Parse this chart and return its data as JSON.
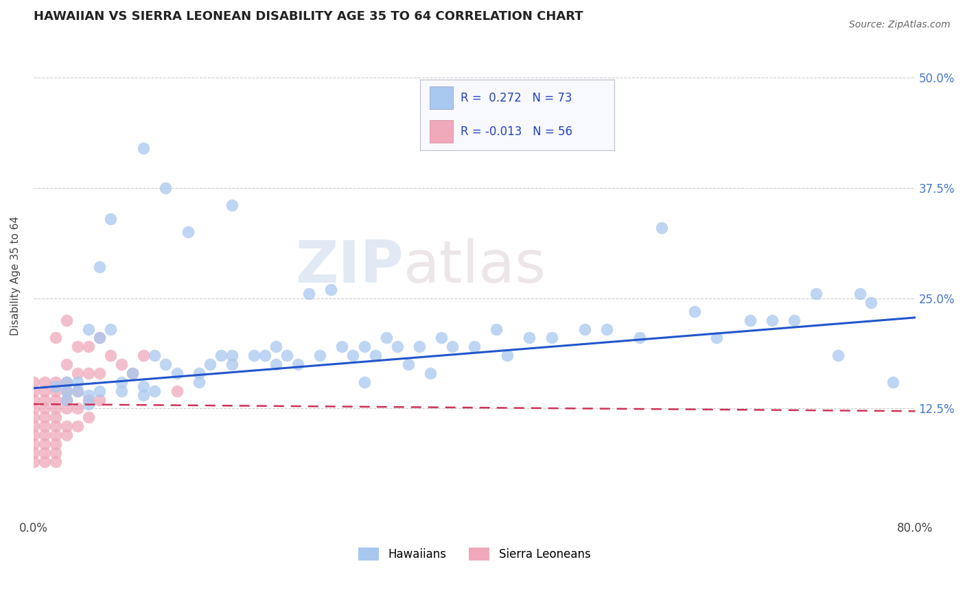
{
  "title": "HAWAIIAN VS SIERRA LEONEAN DISABILITY AGE 35 TO 64 CORRELATION CHART",
  "source_text": "Source: ZipAtlas.com",
  "ylabel": "Disability Age 35 to 64",
  "xlim": [
    0.0,
    0.8
  ],
  "ylim": [
    0.0,
    0.55
  ],
  "xtick_values": [
    0.0,
    0.1,
    0.2,
    0.3,
    0.4,
    0.5,
    0.6,
    0.7,
    0.8
  ],
  "ytick_values": [
    0.0,
    0.125,
    0.25,
    0.375,
    0.5
  ],
  "r_hawaiian": 0.272,
  "n_hawaiian": 73,
  "r_sierraleonean": -0.013,
  "n_sierraleonean": 56,
  "hawaiian_color": "#a8c8f0",
  "sierraleonean_color": "#f0a8bb",
  "trend_hawaiian_color": "#2255cc",
  "trend_sierraleonean_color": "#cc3355",
  "background_color": "#ffffff",
  "legend_label_hawaiian": "Hawaiians",
  "legend_label_sierraleonean": "Sierra Leoneans",
  "hawaiian_x": [
    0.02,
    0.03,
    0.03,
    0.03,
    0.04,
    0.04,
    0.05,
    0.05,
    0.05,
    0.06,
    0.06,
    0.06,
    0.07,
    0.07,
    0.08,
    0.08,
    0.09,
    0.1,
    0.1,
    0.11,
    0.11,
    0.12,
    0.12,
    0.13,
    0.14,
    0.15,
    0.15,
    0.16,
    0.17,
    0.18,
    0.18,
    0.2,
    0.21,
    0.22,
    0.22,
    0.23,
    0.24,
    0.25,
    0.26,
    0.28,
    0.29,
    0.3,
    0.3,
    0.31,
    0.32,
    0.33,
    0.34,
    0.35,
    0.36,
    0.37,
    0.38,
    0.4,
    0.42,
    0.43,
    0.45,
    0.47,
    0.5,
    0.52,
    0.55,
    0.57,
    0.6,
    0.62,
    0.65,
    0.67,
    0.69,
    0.71,
    0.73,
    0.75,
    0.76,
    0.78,
    0.1,
    0.18,
    0.27
  ],
  "hawaiian_y": [
    0.15,
    0.155,
    0.145,
    0.135,
    0.145,
    0.155,
    0.215,
    0.14,
    0.13,
    0.285,
    0.205,
    0.145,
    0.34,
    0.215,
    0.155,
    0.145,
    0.165,
    0.15,
    0.14,
    0.185,
    0.145,
    0.375,
    0.175,
    0.165,
    0.325,
    0.165,
    0.155,
    0.175,
    0.185,
    0.185,
    0.175,
    0.185,
    0.185,
    0.195,
    0.175,
    0.185,
    0.175,
    0.255,
    0.185,
    0.195,
    0.185,
    0.155,
    0.195,
    0.185,
    0.205,
    0.195,
    0.175,
    0.195,
    0.165,
    0.205,
    0.195,
    0.195,
    0.215,
    0.185,
    0.205,
    0.205,
    0.215,
    0.215,
    0.205,
    0.33,
    0.235,
    0.205,
    0.225,
    0.225,
    0.225,
    0.255,
    0.185,
    0.255,
    0.245,
    0.155,
    0.42,
    0.355,
    0.26
  ],
  "sierraleonean_x": [
    0.0,
    0.0,
    0.0,
    0.0,
    0.0,
    0.0,
    0.0,
    0.0,
    0.0,
    0.0,
    0.01,
    0.01,
    0.01,
    0.01,
    0.01,
    0.01,
    0.01,
    0.01,
    0.01,
    0.01,
    0.02,
    0.02,
    0.02,
    0.02,
    0.02,
    0.02,
    0.02,
    0.02,
    0.02,
    0.02,
    0.03,
    0.03,
    0.03,
    0.03,
    0.03,
    0.03,
    0.03,
    0.04,
    0.04,
    0.04,
    0.04,
    0.04,
    0.05,
    0.05,
    0.05,
    0.05,
    0.06,
    0.06,
    0.06,
    0.07,
    0.08,
    0.09,
    0.1,
    0.13,
    0.03,
    0.02
  ],
  "sierraleonean_y": [
    0.155,
    0.145,
    0.135,
    0.125,
    0.115,
    0.105,
    0.095,
    0.085,
    0.075,
    0.065,
    0.155,
    0.145,
    0.135,
    0.125,
    0.115,
    0.105,
    0.095,
    0.085,
    0.075,
    0.065,
    0.155,
    0.145,
    0.135,
    0.125,
    0.115,
    0.105,
    0.095,
    0.085,
    0.075,
    0.065,
    0.175,
    0.155,
    0.145,
    0.135,
    0.125,
    0.105,
    0.095,
    0.195,
    0.165,
    0.145,
    0.125,
    0.105,
    0.195,
    0.165,
    0.135,
    0.115,
    0.205,
    0.165,
    0.135,
    0.185,
    0.175,
    0.165,
    0.185,
    0.145,
    0.225,
    0.205
  ],
  "trend_h_x0": 0.0,
  "trend_h_y0": 0.148,
  "trend_h_x1": 0.8,
  "trend_h_y1": 0.228,
  "trend_s_x0": 0.0,
  "trend_s_y0": 0.13,
  "trend_s_x1": 0.8,
  "trend_s_y1": 0.122
}
